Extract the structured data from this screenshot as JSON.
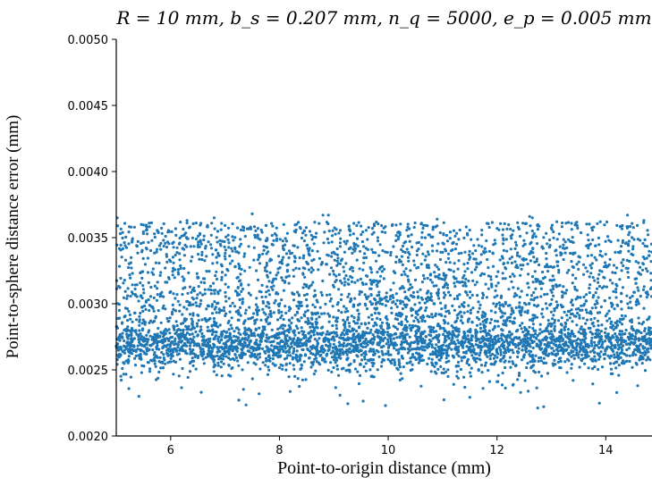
{
  "chart_data": {
    "type": "scatter",
    "title": "R = 10 mm, b_s = 0.207 mm, n_q = 5000, e_p = 0.005 mm",
    "xlabel": "Point-to-origin distance (mm)",
    "ylabel": "Point-to-sphere distance error (mm)",
    "xlim": [
      5.0,
      14.85
    ],
    "ylim": [
      0.002,
      0.005
    ],
    "xticks": [
      "6",
      "8",
      "10",
      "12",
      "14"
    ],
    "xtick_values": [
      6,
      8,
      10,
      12,
      14
    ],
    "yticks": [
      "0.0020",
      "0.0025",
      "0.0030",
      "0.0035",
      "0.0040",
      "0.0045",
      "0.0050"
    ],
    "ytick_values": [
      0.002,
      0.0025,
      0.003,
      0.0035,
      0.004,
      0.0045,
      0.005
    ],
    "grid": false,
    "marker_color": "#1f77b4",
    "points": [
      [
        5.02,
        0.00365
      ],
      [
        5.4,
        0.00347
      ],
      [
        6.3,
        0.00363
      ],
      [
        6.8,
        0.00365
      ],
      [
        7.5,
        0.00368
      ],
      [
        8.8,
        0.00367
      ],
      [
        8.9,
        0.00367
      ],
      [
        9.3,
        0.00352
      ],
      [
        10.9,
        0.00364
      ],
      [
        12.6,
        0.00366
      ],
      [
        12.65,
        0.00365
      ],
      [
        13.1,
        0.00362
      ],
      [
        13.9,
        0.00362
      ],
      [
        14.4,
        0.00367
      ],
      [
        14.7,
        0.00363
      ],
      [
        9.95,
        0.00223
      ],
      [
        11.1,
        0.00245
      ],
      [
        12.0,
        0.00241
      ],
      [
        12.3,
        0.00239
      ],
      [
        13.4,
        0.00242
      ],
      [
        14.1,
        0.00247
      ],
      [
        6.4,
        0.00285
      ],
      [
        7.8,
        0.0031
      ],
      [
        9.1,
        0.00322
      ],
      [
        10.5,
        0.00318
      ],
      [
        11.9,
        0.00315
      ],
      [
        13.2,
        0.00305
      ],
      [
        14.6,
        0.0031
      ],
      [
        14.8,
        0.0029
      ],
      [
        5.2,
        0.00275
      ],
      [
        7.1,
        0.00268
      ],
      [
        8.5,
        0.00272
      ],
      [
        10.0,
        0.00271
      ],
      [
        11.5,
        0.0027
      ],
      [
        12.8,
        0.00269
      ],
      [
        13.6,
        0.00266
      ],
      [
        14.3,
        0.00265
      ],
      [
        6.0,
        0.00332
      ],
      [
        8.2,
        0.00338
      ],
      [
        9.7,
        0.00341
      ],
      [
        11.3,
        0.00338
      ],
      [
        12.2,
        0.00331
      ],
      [
        13.8,
        0.00335
      ]
    ],
    "cloud": {
      "n": 5000,
      "x_range": [
        5.0,
        14.85
      ],
      "core_center": 0.00269,
      "core_spread": 0.0001,
      "core_fraction": 0.6,
      "upper_range": [
        0.00285,
        0.00362
      ],
      "seed": 7
    }
  }
}
